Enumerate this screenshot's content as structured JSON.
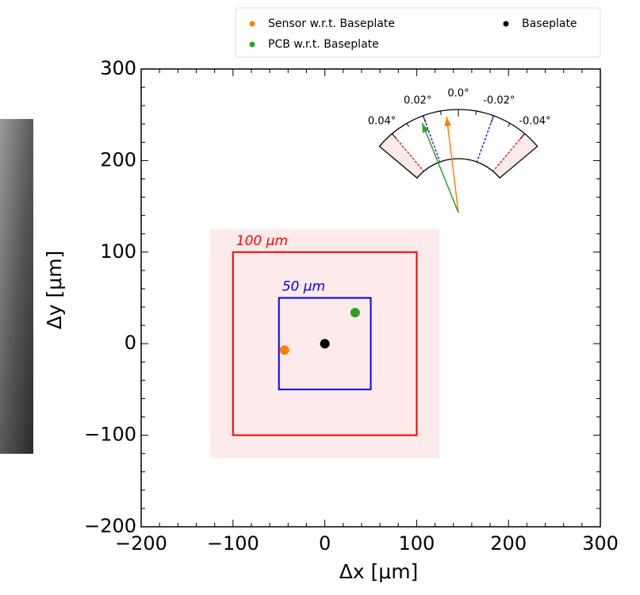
{
  "chart_data": {
    "type": "scatter",
    "xlabel": "Δx [μm]",
    "ylabel": "Δy [μm]",
    "xlim": [
      -200,
      300
    ],
    "ylim": [
      -200,
      300
    ],
    "xticks": [
      {
        "value": -200,
        "label": "−200"
      },
      {
        "value": -100,
        "label": "−100"
      },
      0,
      100,
      200,
      300
    ],
    "yticks": [
      {
        "value": -200,
        "label": "−200"
      },
      {
        "value": -100,
        "label": "−100"
      },
      0,
      100,
      200,
      300
    ],
    "minor_ticks": [
      -180,
      -160,
      -140,
      -120,
      -80,
      -60,
      -40,
      -20,
      20,
      40,
      60,
      80,
      120,
      140,
      160,
      180,
      220,
      240,
      260,
      280
    ],
    "regions": [
      {
        "label": "100 μm",
        "half": 100,
        "color": "#ff0000",
        "shade_half": 125,
        "shade": "#fdeaea"
      },
      {
        "label": "50 μm",
        "half": 50,
        "color": "#0000ff"
      }
    ],
    "series": [
      {
        "name": "Sensor w.r.t. Baseplate",
        "color": "#ff7f0e",
        "x": [
          -44
        ],
        "y": [
          -7
        ]
      },
      {
        "name": "PCB w.r.t. Baseplate",
        "color": "#2ca02c",
        "x": [
          33
        ],
        "y": [
          34
        ]
      },
      {
        "name": "Baseplate",
        "color": "#000000",
        "x": [
          0
        ],
        "y": [
          0
        ]
      }
    ],
    "gauge": {
      "lim": [
        -0.05,
        0.05
      ],
      "ticks": [
        {
          "value": 0.04,
          "label": "0.04°"
        },
        {
          "value": 0.02,
          "label": "0.02°"
        },
        {
          "value": 0.0,
          "label": "0.0°"
        },
        {
          "value": -0.02,
          "label": "-0.02°"
        },
        {
          "value": -0.04,
          "label": "-0.04°"
        }
      ],
      "minor_ticks": [
        0.03,
        0.01,
        -0.01,
        -0.03
      ],
      "limit_lines": [
        {
          "value": 0.04,
          "color": "#ff0000"
        },
        {
          "value": 0.02,
          "color": "#0000ff"
        },
        {
          "value": -0.02,
          "color": "#0000ff"
        },
        {
          "value": -0.04,
          "color": "#ff0000"
        }
      ],
      "shade": "#fdeaea",
      "arrows": [
        {
          "color": "#ff7f0e",
          "value": 0.007
        },
        {
          "color": "#2ca02c",
          "value": 0.022
        }
      ]
    }
  }
}
